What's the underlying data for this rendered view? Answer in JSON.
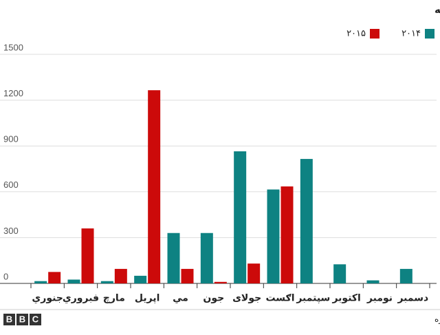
{
  "chart_data": {
    "type": "bar",
    "title": "په مديترانه کې هره مياشت د کډوالو مړينه",
    "categories": [
      "جنوري",
      "فبروري",
      "مارچ",
      "اپريل",
      "مي",
      "جون",
      "جولای",
      "اګست",
      "سپتمبر",
      "اکتوبر",
      "نومبر",
      "دسمبر"
    ],
    "series": [
      {
        "name": "۲۰۱۴",
        "color": "#0e8282",
        "values": [
          15,
          25,
          15,
          50,
          330,
          330,
          865,
          615,
          815,
          125,
          20,
          95
        ]
      },
      {
        "name": "۲۰۱۵",
        "color": "#cc0a0a",
        "values": [
          75,
          360,
          95,
          1265,
          95,
          10,
          130,
          635,
          null,
          null,
          null,
          null
        ]
      }
    ],
    "ylim": [
      0,
      1500
    ],
    "yticks": [
      0,
      300,
      600,
      900,
      1200,
      1500
    ],
    "grid": true,
    "source": "سرچينه: د کډوالو چارو نړيواله اداره",
    "logo": [
      "B",
      "B",
      "C"
    ]
  }
}
